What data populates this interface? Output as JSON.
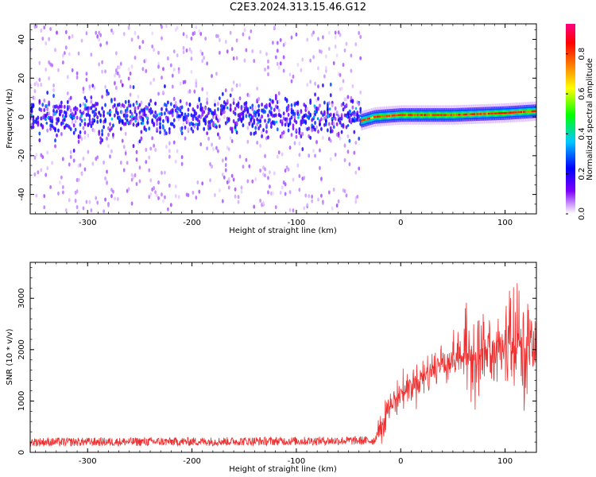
{
  "title": "C2E3.2024.313.15.46.G12",
  "chart_data": [
    {
      "type": "heatmap",
      "xlabel": "Height of straight line (km)",
      "ylabel": "Frequency (Hz)",
      "xlim": [
        -355,
        130
      ],
      "ylim": [
        -50,
        48
      ],
      "xticks": [
        -300,
        -200,
        -100,
        0,
        100
      ],
      "xtick_labels": [
        "-300",
        "-200",
        "-100",
        "0",
        "100"
      ],
      "yticks": [
        -40,
        -20,
        0,
        20,
        40
      ],
      "ytick_labels": [
        "-40",
        "-20",
        "0",
        "20",
        "40"
      ],
      "grid": false,
      "colorbar": {
        "label": "Normalized spectral amplitude",
        "range": [
          0,
          0.95
        ],
        "ticks": [
          0,
          0.2,
          0.4,
          0.6,
          0.8
        ],
        "tick_labels": [
          "0.0",
          "0.2",
          "0.4",
          "0.6",
          "0.8"
        ],
        "colors": [
          "#ffffff",
          "#7f00ff",
          "#0000ff",
          "#00c8ff",
          "#00ff00",
          "#ffff00",
          "#ff8000",
          "#ff0000",
          "#ff0080"
        ]
      },
      "description_features": {
        "noisy_region_x": [
          -355,
          -38
        ],
        "noisy_band_freq": [
          -8,
          8
        ],
        "signal_region_x": [
          -38,
          130
        ],
        "signal_track": [
          {
            "x": -38,
            "freq": -2
          },
          {
            "x": -25,
            "freq": 0
          },
          {
            "x": 0,
            "freq": 1
          },
          {
            "x": 50,
            "freq": 1
          },
          {
            "x": 100,
            "freq": 2
          },
          {
            "x": 130,
            "freq": 3
          }
        ]
      }
    },
    {
      "type": "line",
      "xlabel": "Height of straight line (km)",
      "ylabel": "SNR (10 * v/v)",
      "xlim": [
        -355,
        130
      ],
      "ylim": [
        0,
        3700
      ],
      "xticks": [
        -300,
        -200,
        -100,
        0,
        100
      ],
      "xtick_labels": [
        "-300",
        "-200",
        "-100",
        "0",
        "100"
      ],
      "yticks": [
        0,
        1000,
        2000,
        3000
      ],
      "ytick_labels": [
        "0",
        "1000",
        "2000",
        "3000"
      ],
      "grid": false,
      "line_color": "#f03030",
      "trend": [
        {
          "x": -355,
          "y": 200
        },
        {
          "x": -200,
          "y": 210
        },
        {
          "x": -100,
          "y": 220
        },
        {
          "x": -25,
          "y": 230
        },
        {
          "x": -20,
          "y": 500
        },
        {
          "x": -10,
          "y": 900
        },
        {
          "x": 0,
          "y": 1150
        },
        {
          "x": 20,
          "y": 1450
        },
        {
          "x": 40,
          "y": 1750
        },
        {
          "x": 60,
          "y": 1900
        },
        {
          "x": 80,
          "y": 1950
        },
        {
          "x": 100,
          "y": 2000
        },
        {
          "x": 130,
          "y": 2050
        }
      ]
    }
  ]
}
